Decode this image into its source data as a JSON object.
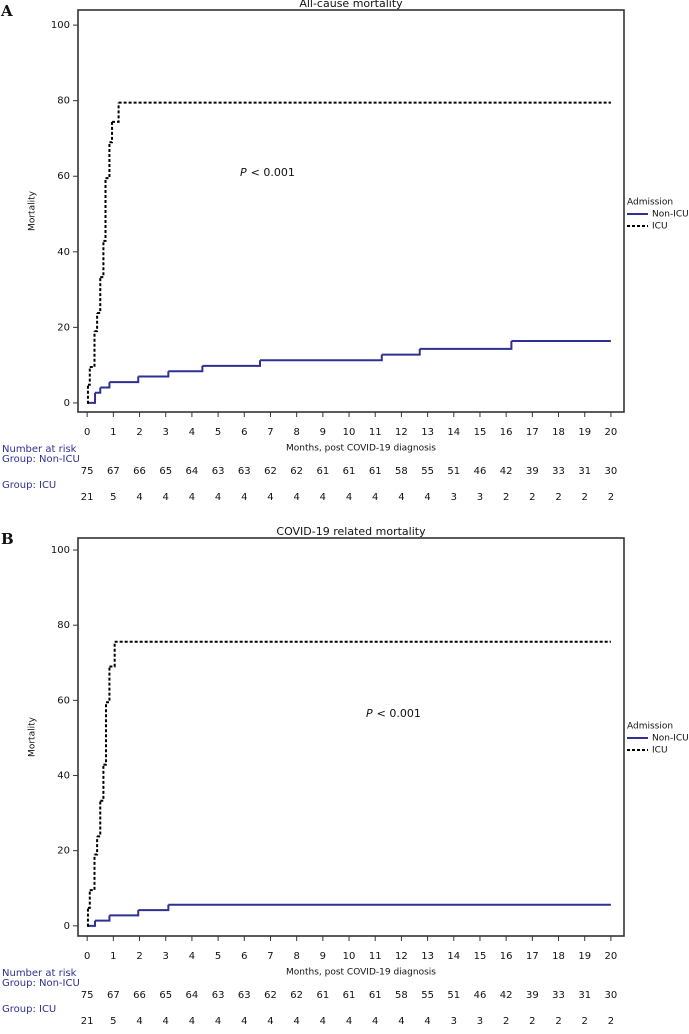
{
  "chart_data": [
    {
      "type": "line",
      "step": true,
      "panel": "A",
      "title": "All-cause mortality",
      "xlabel": "Months, post COVID-19 diagnosis",
      "ylabel": "Mortality",
      "xlim": [
        -0.35,
        20.5
      ],
      "ylim": [
        -2.4,
        104
      ],
      "xticks": [
        0,
        1,
        2,
        3,
        4,
        5,
        6,
        7,
        8,
        9,
        10,
        11,
        12,
        13,
        14,
        15,
        16,
        17,
        18,
        19,
        20
      ],
      "yticks": [
        0,
        20,
        40,
        60,
        80,
        100
      ],
      "annotation_italic": "P",
      "annotation": "< 0.001",
      "legend_title": "Admission",
      "series": [
        {
          "name": "Non-ICU",
          "color": "#2e3192",
          "dashed": false,
          "x": [
            0,
            0.3,
            0.5,
            0.85,
            1.95,
            3.1,
            4.4,
            6.6,
            11.25,
            12.7,
            16.2,
            20
          ],
          "values": [
            0,
            2.7,
            4.1,
            5.5,
            7.0,
            8.4,
            9.8,
            11.3,
            12.8,
            14.3,
            16.4,
            16.4
          ]
        },
        {
          "name": "ICU",
          "color": "#000000",
          "dashed": true,
          "x": [
            0,
            0.03,
            0.1,
            0.28,
            0.38,
            0.5,
            0.62,
            0.7,
            0.85,
            0.95,
            1.2,
            20
          ],
          "values": [
            0,
            4.8,
            9.5,
            19.0,
            23.8,
            33.3,
            42.9,
            59.5,
            69.0,
            74.4,
            79.5,
            79.5
          ]
        }
      ],
      "risk_table": {
        "title": "Number at risk",
        "color": "#2e3192",
        "groups": [
          {
            "label": "Group: Non-ICU",
            "counts": [
              75,
              67,
              66,
              65,
              64,
              63,
              63,
              62,
              62,
              61,
              61,
              61,
              58,
              55,
              51,
              46,
              42,
              39,
              33,
              31,
              30
            ]
          },
          {
            "label": "Group: ICU",
            "counts": [
              21,
              5,
              4,
              4,
              4,
              4,
              4,
              4,
              4,
              4,
              4,
              4,
              4,
              4,
              3,
              3,
              2,
              2,
              2,
              2,
              2
            ]
          }
        ]
      }
    },
    {
      "type": "line",
      "step": true,
      "panel": "B",
      "title": "COVID-19 related mortality",
      "xlabel": "Months, post COVID-19 diagnosis",
      "ylabel": "Mortality",
      "xlim": [
        -0.35,
        20.5
      ],
      "ylim": [
        -2.7,
        103.2
      ],
      "xticks": [
        0,
        1,
        2,
        3,
        4,
        5,
        6,
        7,
        8,
        9,
        10,
        11,
        12,
        13,
        14,
        15,
        16,
        17,
        18,
        19,
        20
      ],
      "yticks": [
        0,
        20,
        40,
        60,
        80,
        100
      ],
      "annotation_italic": "P",
      "annotation": "< 0.001",
      "legend_title": "Admission",
      "series": [
        {
          "name": "Non-ICU",
          "color": "#2e3192",
          "dashed": false,
          "x": [
            0,
            0.3,
            0.85,
            1.95,
            3.1,
            20
          ],
          "values": [
            0,
            1.4,
            2.8,
            4.2,
            5.6,
            5.6
          ]
        },
        {
          "name": "ICU",
          "color": "#000000",
          "dashed": true,
          "x": [
            0,
            0.03,
            0.1,
            0.28,
            0.38,
            0.5,
            0.62,
            0.72,
            0.85,
            1.05,
            20
          ],
          "values": [
            0,
            4.8,
            9.5,
            19.0,
            23.8,
            33.3,
            42.9,
            59.5,
            69.0,
            75.6,
            75.6
          ]
        }
      ],
      "risk_table": {
        "title": "Number at risk",
        "color": "#2e3192",
        "groups": [
          {
            "label": "Group: Non-ICU",
            "counts": [
              75,
              67,
              66,
              65,
              64,
              63,
              63,
              62,
              62,
              61,
              61,
              61,
              58,
              55,
              51,
              46,
              42,
              39,
              33,
              31,
              30
            ]
          },
          {
            "label": "Group: ICU",
            "counts": [
              21,
              5,
              4,
              4,
              4,
              4,
              4,
              4,
              4,
              4,
              4,
              4,
              4,
              4,
              3,
              3,
              2,
              2,
              2,
              2,
              2
            ]
          }
        ]
      }
    }
  ]
}
